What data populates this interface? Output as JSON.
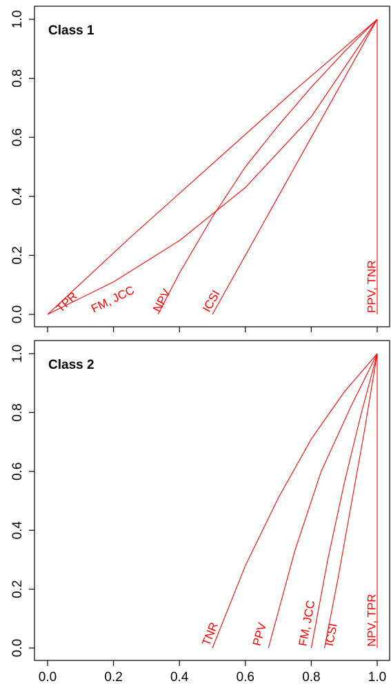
{
  "colors": {
    "series": "#ff0000",
    "frame": "#000000",
    "background": "#ffffff"
  },
  "chart_data": [
    {
      "type": "line",
      "title": "Class 1",
      "xlabel": "",
      "ylabel": "",
      "xlim": [
        0,
        1
      ],
      "ylim": [
        0,
        1
      ],
      "x_ticks": [
        "0.0",
        "0.2",
        "0.4",
        "0.6",
        "0.8",
        "1.0"
      ],
      "x_ticks_shown": false,
      "y_ticks": [
        "0.0",
        "0.2",
        "0.4",
        "0.6",
        "0.8",
        "1.0"
      ],
      "grid": false,
      "series": [
        {
          "name": "TPR",
          "x": [
            0.0,
            0.25,
            0.5,
            0.75,
            1.0
          ],
          "y": [
            0.0,
            0.26,
            0.51,
            0.76,
            1.0
          ]
        },
        {
          "name": "FM, JCC",
          "x": [
            0.0,
            0.2,
            0.4,
            0.6,
            0.8,
            1.0
          ],
          "y": [
            0.0,
            0.11,
            0.25,
            0.43,
            0.67,
            1.0
          ]
        },
        {
          "name": "NPV",
          "x": [
            0.335,
            0.4,
            0.5,
            0.6,
            0.7,
            0.8,
            0.9,
            1.0
          ],
          "y": [
            0.0,
            0.14,
            0.33,
            0.5,
            0.64,
            0.77,
            0.89,
            1.0
          ]
        },
        {
          "name": "ICSI",
          "x": [
            0.5,
            0.6,
            0.7,
            0.8,
            0.9,
            1.0
          ],
          "y": [
            0.0,
            0.2,
            0.4,
            0.6,
            0.8,
            1.0
          ]
        },
        {
          "name": "PPV, TNR",
          "x": [
            1.0,
            1.0
          ],
          "y": [
            0.0,
            1.0
          ]
        }
      ],
      "label_x": [
        0.04,
        0.14,
        0.34,
        0.49,
        0.995
      ]
    },
    {
      "type": "line",
      "title": "Class 2",
      "xlabel": "",
      "ylabel": "",
      "xlim": [
        0,
        1
      ],
      "ylim": [
        0,
        1
      ],
      "x_ticks": [
        "0.0",
        "0.2",
        "0.4",
        "0.6",
        "0.8",
        "1.0"
      ],
      "x_ticks_shown": true,
      "y_ticks": [
        "0.0",
        "0.2",
        "0.4",
        "0.6",
        "0.8",
        "1.0"
      ],
      "grid": false,
      "series": [
        {
          "name": "TNR",
          "x": [
            0.5,
            0.6,
            0.7,
            0.8,
            0.9,
            1.0
          ],
          "y": [
            0.0,
            0.28,
            0.51,
            0.71,
            0.87,
            1.0
          ]
        },
        {
          "name": "PPV",
          "x": [
            0.67,
            0.75,
            0.83,
            0.92,
            1.0
          ],
          "y": [
            0.0,
            0.33,
            0.6,
            0.82,
            1.0
          ]
        },
        {
          "name": "FM, JCC",
          "x": [
            0.8,
            0.85,
            0.9,
            0.95,
            1.0
          ],
          "y": [
            0.0,
            0.3,
            0.56,
            0.79,
            1.0
          ]
        },
        {
          "name": "ICSI",
          "x": [
            0.84,
            0.88,
            0.92,
            0.96,
            1.0
          ],
          "y": [
            0.0,
            0.23,
            0.48,
            0.73,
            1.0
          ]
        },
        {
          "name": "NPV, TPR",
          "x": [
            1.0,
            1.0
          ],
          "y": [
            0.0,
            1.0
          ]
        }
      ],
      "label_x": [
        0.49,
        0.645,
        0.785,
        0.865,
        0.995
      ]
    }
  ]
}
